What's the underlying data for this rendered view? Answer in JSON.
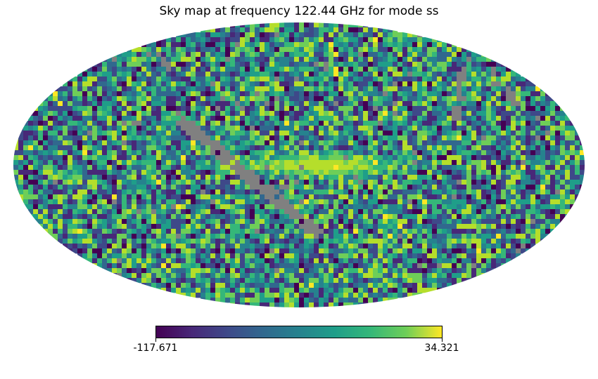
{
  "chart_data": {
    "type": "heatmap",
    "projection": "mollweide",
    "title": "Sky map at frequency 122.44 GHz for mode ss",
    "colormap": "viridis",
    "colorbar": {
      "min": -117.671,
      "max": 34.321,
      "min_label": "-117.671",
      "max_label": "34.321",
      "orientation": "horizontal"
    },
    "masked_color": "#808080",
    "features": [
      "Bright (high-value) band near the map centre, slightly above the equator",
      "Grey masked diagonal streak from upper-left toward lower-centre",
      "Grey masked curved streaks in the upper-right region",
      "Noise-dominated pixels elsewhere spanning the full colour range"
    ]
  }
}
